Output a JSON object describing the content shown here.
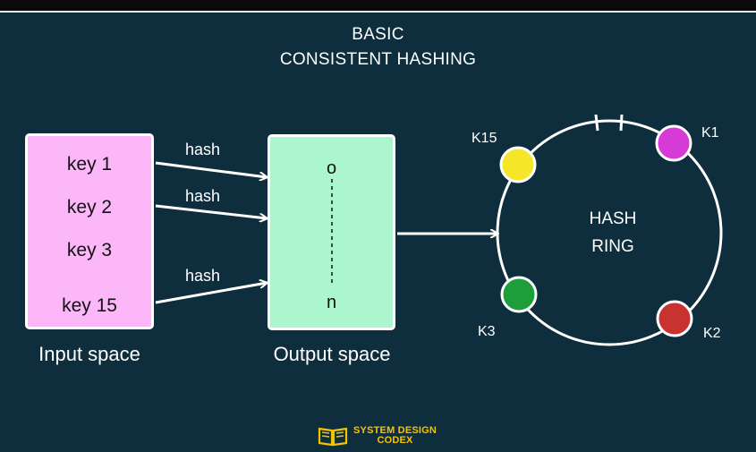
{
  "title": {
    "line1": "BASIC",
    "line2": "CONSISTENT HASHING"
  },
  "input_space": {
    "keys": [
      "key 1",
      "key 2",
      "key 3",
      "key 15"
    ],
    "caption": "Input space",
    "color": "#fbb7f8"
  },
  "hash_labels": [
    "hash",
    "hash",
    "hash"
  ],
  "output_space": {
    "top": "o",
    "bottom": "n",
    "caption": "Output space",
    "color": "#acf6cf"
  },
  "ring": {
    "line1": "HASH",
    "line2": "RING",
    "nodes": [
      {
        "label": "K15",
        "color": "#f5e62a"
      },
      {
        "label": "K1",
        "color": "#d63bd6"
      },
      {
        "label": "K3",
        "color": "#1e9e3a"
      },
      {
        "label": "K2",
        "color": "#c8322f"
      }
    ]
  },
  "logo": {
    "line1": "SYSTEM DESIGN",
    "line2": "CODEX",
    "color": "#f5c400"
  }
}
